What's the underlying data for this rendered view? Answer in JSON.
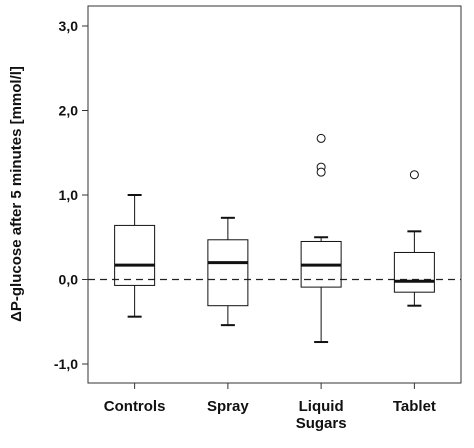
{
  "chart_data": {
    "type": "box",
    "title": "",
    "ylabel": "ΔP-glucose after 5 minutes [mmol/l]",
    "xlabel": "",
    "ylim": [
      -1.25,
      3.2
    ],
    "yticks": [
      3.0,
      2.0,
      1.0,
      0.0,
      -1.0
    ],
    "ytick_labels": [
      "3,0",
      "2,0",
      "1,0",
      "0,0",
      "-1,0"
    ],
    "reference_line": 0.0,
    "grid": false,
    "categories": [
      {
        "label_lines": [
          "Controls"
        ]
      },
      {
        "label_lines": [
          "Spray"
        ]
      },
      {
        "label_lines": [
          "Liquid",
          "Sugars"
        ]
      },
      {
        "label_lines": [
          "Tablet"
        ]
      }
    ],
    "boxes": [
      {
        "whisker_low": -0.44,
        "q1": -0.07,
        "median": 0.17,
        "q3": 0.64,
        "whisker_high": 1.0,
        "outliers": []
      },
      {
        "whisker_low": -0.54,
        "q1": -0.31,
        "median": 0.2,
        "q3": 0.47,
        "whisker_high": 0.73,
        "outliers": []
      },
      {
        "whisker_low": -0.74,
        "q1": -0.09,
        "median": 0.17,
        "q3": 0.45,
        "whisker_high": 0.5,
        "outliers": [
          1.67,
          1.33,
          1.27
        ]
      },
      {
        "whisker_low": -0.31,
        "q1": -0.15,
        "median": -0.02,
        "q3": 0.32,
        "whisker_high": 0.57,
        "outliers": [
          1.24
        ]
      }
    ]
  }
}
